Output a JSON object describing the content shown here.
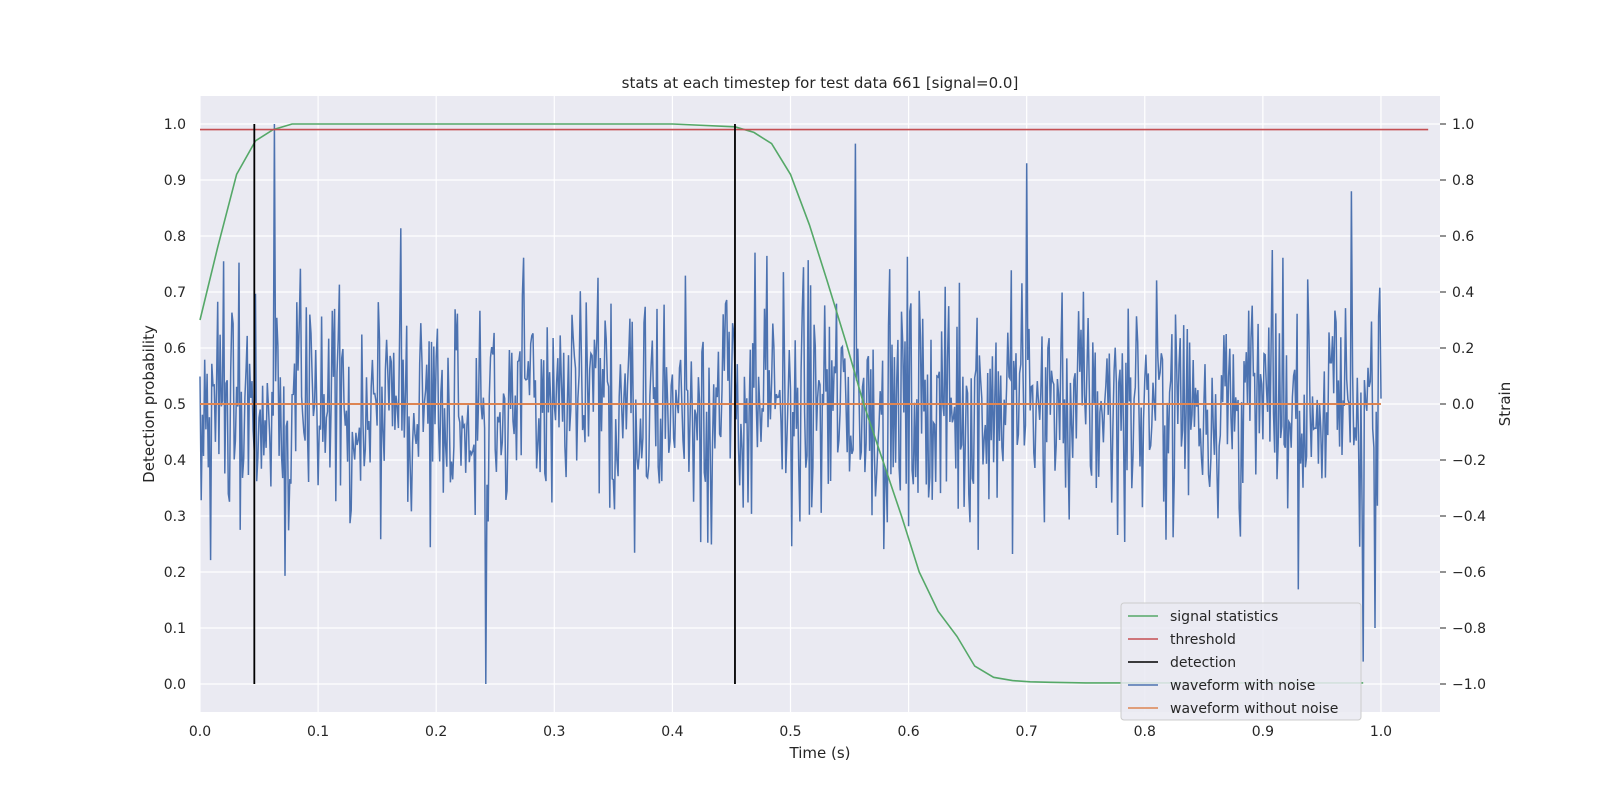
{
  "chart_data": {
    "type": "line",
    "title": "stats at each timestep for test data 661 [signal=0.0]",
    "xlabel": "Time (s)",
    "ylabel_left": "Detection probability",
    "ylabel_right": "Strain",
    "xlim": [
      0.0,
      1.05
    ],
    "ylim_left": [
      -0.05,
      1.05
    ],
    "ylim_right": [
      -1.1,
      1.1
    ],
    "x_ticks": [
      0.0,
      0.1,
      0.2,
      0.3,
      0.4,
      0.5,
      0.6,
      0.7,
      0.8,
      0.9,
      1.0
    ],
    "x_tick_labels": [
      "0.0",
      "0.1",
      "0.2",
      "0.3",
      "0.4",
      "0.5",
      "0.6",
      "0.7",
      "0.8",
      "0.9",
      "1.0"
    ],
    "y_left_ticks": [
      0.0,
      0.1,
      0.2,
      0.3,
      0.4,
      0.5,
      0.6,
      0.7,
      0.8,
      0.9,
      1.0
    ],
    "y_left_tick_labels": [
      "0.0",
      "0.1",
      "0.2",
      "0.3",
      "0.4",
      "0.5",
      "0.6",
      "0.7",
      "0.8",
      "0.9",
      "1.0"
    ],
    "y_right_ticks": [
      -1.0,
      -0.8,
      -0.6,
      -0.4,
      -0.2,
      0.0,
      0.2,
      0.4,
      0.6,
      0.8,
      1.0
    ],
    "y_right_tick_labels": [
      "−1.0",
      "−0.8",
      "−0.6",
      "−0.4",
      "−0.2",
      "0.0",
      "0.2",
      "0.4",
      "0.6",
      "0.8",
      "1.0"
    ],
    "grid": true,
    "legend_position": "bottom-right",
    "series": [
      {
        "name": "signal statistics",
        "axis": "left",
        "color": "#55a868",
        "x": [
          0.0,
          0.015,
          0.031,
          0.047,
          0.062,
          0.078,
          0.2,
          0.3,
          0.4,
          0.453,
          0.469,
          0.484,
          0.5,
          0.516,
          0.531,
          0.547,
          0.562,
          0.578,
          0.594,
          0.609,
          0.625,
          0.641,
          0.656,
          0.672,
          0.688,
          0.703,
          0.72,
          0.75,
          0.8,
          0.85,
          0.9,
          0.95,
          0.985
        ],
        "y": [
          0.65,
          0.78,
          0.91,
          0.97,
          0.99,
          1.0,
          1.0,
          1.0,
          1.0,
          0.995,
          0.985,
          0.965,
          0.91,
          0.82,
          0.72,
          0.61,
          0.5,
          0.4,
          0.3,
          0.2,
          0.13,
          0.085,
          0.032,
          0.012,
          0.006,
          0.004,
          0.003,
          0.002,
          0.002,
          0.002,
          0.002,
          0.002,
          0.002
        ]
      },
      {
        "name": "threshold",
        "axis": "left",
        "color": "#c44e52",
        "x": [
          0.0,
          1.04
        ],
        "y": [
          0.99,
          0.99
        ]
      },
      {
        "name": "detection",
        "axis": "left",
        "color": "#000000",
        "vlines": [
          0.046,
          0.453
        ],
        "ymin": 0.0,
        "ymax": 1.0
      },
      {
        "name": "waveform with noise",
        "axis": "right",
        "color": "#4c72b0",
        "note_points": "noisy trace sampled at 1000 points between 0 and 1 s; peaks read from image",
        "x": [],
        "y": []
      },
      {
        "name": "waveform without noise",
        "axis": "right",
        "color": "#dd8452",
        "x": [
          0.0,
          1.0
        ],
        "y": [
          0.0,
          0.0
        ]
      }
    ]
  }
}
